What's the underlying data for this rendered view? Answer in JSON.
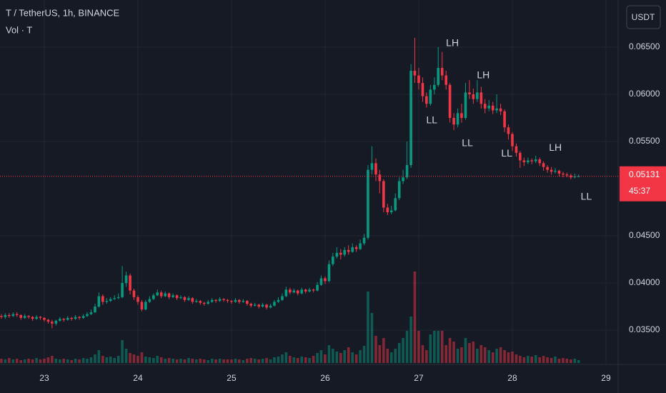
{
  "chart_data": {
    "type": "candlestick",
    "title": "T / TetherUS, 1h, BINANCE",
    "subtitle": "Vol · T",
    "y_axis_unit": "USDT",
    "last_price": 0.05131,
    "countdown": "45:37",
    "up_color": "#089981",
    "down_color": "#f23645",
    "grid": true,
    "xlim": [
      22.527,
      29.13
    ],
    "xticks": [
      23,
      24,
      25,
      26,
      27,
      28,
      29
    ],
    "ylim": [
      0.03137,
      0.07
    ],
    "yticks": [
      {
        "value": 0.065,
        "label": "0.06500"
      },
      {
        "value": 0.06,
        "label": "0.06000"
      },
      {
        "value": 0.055,
        "label": "0.05500"
      },
      {
        "value": 0.045,
        "label": "0.04500"
      },
      {
        "value": 0.04,
        "label": "0.04000"
      },
      {
        "value": 0.035,
        "label": "0.03500"
      }
    ],
    "x": [
      22.542,
      22.583,
      22.625,
      22.667,
      22.708,
      22.75,
      22.792,
      22.833,
      22.875,
      22.917,
      22.958,
      23,
      23.042,
      23.083,
      23.125,
      23.167,
      23.208,
      23.25,
      23.292,
      23.333,
      23.375,
      23.417,
      23.458,
      23.5,
      23.542,
      23.583,
      23.625,
      23.667,
      23.708,
      23.75,
      23.792,
      23.833,
      23.875,
      23.917,
      23.958,
      24,
      24.042,
      24.083,
      24.125,
      24.167,
      24.208,
      24.25,
      24.292,
      24.333,
      24.375,
      24.417,
      24.458,
      24.5,
      24.542,
      24.583,
      24.625,
      24.667,
      24.708,
      24.75,
      24.792,
      24.833,
      24.875,
      24.917,
      24.958,
      25,
      25.042,
      25.083,
      25.125,
      25.167,
      25.208,
      25.25,
      25.292,
      25.333,
      25.375,
      25.417,
      25.458,
      25.5,
      25.542,
      25.583,
      25.625,
      25.667,
      25.708,
      25.75,
      25.792,
      25.833,
      25.875,
      25.917,
      25.958,
      26,
      26.042,
      26.083,
      26.125,
      26.167,
      26.208,
      26.25,
      26.292,
      26.333,
      26.375,
      26.417,
      26.458,
      26.5,
      26.542,
      26.583,
      26.625,
      26.667,
      26.708,
      26.75,
      26.792,
      26.833,
      26.875,
      26.917,
      26.958,
      27,
      27.042,
      27.083,
      27.125,
      27.167,
      27.208,
      27.25,
      27.292,
      27.333,
      27.375,
      27.417,
      27.458,
      27.5,
      27.542,
      27.583,
      27.625,
      27.667,
      27.708,
      27.75,
      27.792,
      27.833,
      27.875,
      27.917,
      27.958,
      28,
      28.042,
      28.083,
      28.125,
      28.167,
      28.208,
      28.25,
      28.292,
      28.333,
      28.375,
      28.417,
      28.458,
      28.5,
      28.542,
      28.583,
      28.625,
      28.667,
      28.708
    ],
    "ohlc": [
      [
        0.0365,
        0.0367,
        0.0362,
        0.0364
      ],
      [
        0.0364,
        0.0368,
        0.0362,
        0.0366
      ],
      [
        0.0366,
        0.0368,
        0.0363,
        0.0365
      ],
      [
        0.0365,
        0.0369,
        0.0364,
        0.0367
      ],
      [
        0.0367,
        0.0369,
        0.0364,
        0.0366
      ],
      [
        0.0366,
        0.0367,
        0.0361,
        0.0363
      ],
      [
        0.0363,
        0.0367,
        0.0362,
        0.0365
      ],
      [
        0.0365,
        0.0366,
        0.0362,
        0.0364
      ],
      [
        0.0364,
        0.0365,
        0.036,
        0.0362
      ],
      [
        0.0362,
        0.0366,
        0.0361,
        0.0364
      ],
      [
        0.0364,
        0.0365,
        0.0361,
        0.0363
      ],
      [
        0.0363,
        0.0364,
        0.0359,
        0.0361
      ],
      [
        0.0361,
        0.0362,
        0.0357,
        0.0359
      ],
      [
        0.0359,
        0.0361,
        0.0352,
        0.0357
      ],
      [
        0.0357,
        0.0361,
        0.0355,
        0.036
      ],
      [
        0.036,
        0.0364,
        0.0359,
        0.0362
      ],
      [
        0.0362,
        0.0363,
        0.0359,
        0.0361
      ],
      [
        0.0361,
        0.0365,
        0.036,
        0.0363
      ],
      [
        0.0363,
        0.0364,
        0.036,
        0.0362
      ],
      [
        0.0362,
        0.0366,
        0.0361,
        0.0364
      ],
      [
        0.0364,
        0.0365,
        0.0361,
        0.0363
      ],
      [
        0.0363,
        0.0367,
        0.0362,
        0.0365
      ],
      [
        0.0365,
        0.0369,
        0.0364,
        0.0367
      ],
      [
        0.0367,
        0.0372,
        0.0366,
        0.0369
      ],
      [
        0.0369,
        0.0378,
        0.0368,
        0.0375
      ],
      [
        0.0375,
        0.039,
        0.0374,
        0.0386
      ],
      [
        0.0386,
        0.0388,
        0.0377,
        0.038
      ],
      [
        0.038,
        0.0384,
        0.0378,
        0.0381
      ],
      [
        0.0381,
        0.0385,
        0.038,
        0.0383
      ],
      [
        0.0383,
        0.0387,
        0.0382,
        0.0384
      ],
      [
        0.0384,
        0.0389,
        0.0383,
        0.0385
      ],
      [
        0.0385,
        0.0418,
        0.0384,
        0.04
      ],
      [
        0.04,
        0.0412,
        0.0396,
        0.0408
      ],
      [
        0.0408,
        0.041,
        0.0388,
        0.0392
      ],
      [
        0.0392,
        0.0394,
        0.0382,
        0.0385
      ],
      [
        0.0385,
        0.0387,
        0.0377,
        0.038
      ],
      [
        0.038,
        0.0382,
        0.037,
        0.0372
      ],
      [
        0.0372,
        0.0382,
        0.0371,
        0.038
      ],
      [
        0.038,
        0.0386,
        0.0379,
        0.0383
      ],
      [
        0.0383,
        0.0389,
        0.0382,
        0.0387
      ],
      [
        0.0387,
        0.0393,
        0.0386,
        0.039
      ],
      [
        0.039,
        0.0392,
        0.0384,
        0.0386
      ],
      [
        0.0386,
        0.0391,
        0.0385,
        0.0389
      ],
      [
        0.0389,
        0.039,
        0.0383,
        0.0385
      ],
      [
        0.0385,
        0.0389,
        0.0384,
        0.0387
      ],
      [
        0.0387,
        0.0388,
        0.0382,
        0.0384
      ],
      [
        0.0384,
        0.0387,
        0.0383,
        0.0385
      ],
      [
        0.0385,
        0.0386,
        0.038,
        0.0382
      ],
      [
        0.0382,
        0.0386,
        0.0381,
        0.0384
      ],
      [
        0.0384,
        0.0385,
        0.0378,
        0.038
      ],
      [
        0.038,
        0.0383,
        0.0379,
        0.0381
      ],
      [
        0.0381,
        0.0382,
        0.0377,
        0.0379
      ],
      [
        0.0379,
        0.038,
        0.0376,
        0.0378
      ],
      [
        0.0378,
        0.0382,
        0.0377,
        0.038
      ],
      [
        0.038,
        0.0384,
        0.0379,
        0.0382
      ],
      [
        0.0382,
        0.0383,
        0.0379,
        0.0381
      ],
      [
        0.0381,
        0.0385,
        0.038,
        0.0383
      ],
      [
        0.0383,
        0.0384,
        0.038,
        0.0382
      ],
      [
        0.0382,
        0.0383,
        0.0379,
        0.0381
      ],
      [
        0.0381,
        0.0382,
        0.0378,
        0.038
      ],
      [
        0.038,
        0.0384,
        0.0379,
        0.0382
      ],
      [
        0.0382,
        0.0383,
        0.0378,
        0.038
      ],
      [
        0.038,
        0.0383,
        0.0379,
        0.0381
      ],
      [
        0.0381,
        0.0382,
        0.0376,
        0.0378
      ],
      [
        0.0378,
        0.0379,
        0.0374,
        0.0376
      ],
      [
        0.0376,
        0.0379,
        0.0375,
        0.0377
      ],
      [
        0.0377,
        0.0378,
        0.0373,
        0.0375
      ],
      [
        0.0375,
        0.0379,
        0.0374,
        0.0377
      ],
      [
        0.0377,
        0.0378,
        0.0372,
        0.0374
      ],
      [
        0.0374,
        0.0378,
        0.0373,
        0.0376
      ],
      [
        0.0376,
        0.0382,
        0.0375,
        0.038
      ],
      [
        0.038,
        0.0385,
        0.0379,
        0.0382
      ],
      [
        0.0382,
        0.0389,
        0.0381,
        0.0386
      ],
      [
        0.0386,
        0.0396,
        0.0385,
        0.0393
      ],
      [
        0.0393,
        0.0395,
        0.0388,
        0.039
      ],
      [
        0.039,
        0.0394,
        0.0389,
        0.0392
      ],
      [
        0.0392,
        0.0393,
        0.0387,
        0.0389
      ],
      [
        0.0389,
        0.0395,
        0.0388,
        0.0393
      ],
      [
        0.0393,
        0.0394,
        0.0389,
        0.0391
      ],
      [
        0.0391,
        0.0395,
        0.039,
        0.0393
      ],
      [
        0.0393,
        0.0394,
        0.039,
        0.0392
      ],
      [
        0.0392,
        0.0401,
        0.0391,
        0.0398
      ],
      [
        0.0398,
        0.0408,
        0.0397,
        0.0405
      ],
      [
        0.0405,
        0.0407,
        0.0399,
        0.0402
      ],
      [
        0.0402,
        0.0424,
        0.0401,
        0.042
      ],
      [
        0.042,
        0.0432,
        0.0418,
        0.0428
      ],
      [
        0.0428,
        0.0438,
        0.0426,
        0.0432
      ],
      [
        0.0432,
        0.0436,
        0.0425,
        0.043
      ],
      [
        0.043,
        0.0438,
        0.0428,
        0.0435
      ],
      [
        0.0435,
        0.044,
        0.043,
        0.0433
      ],
      [
        0.0433,
        0.0442,
        0.0432,
        0.0438
      ],
      [
        0.0438,
        0.044,
        0.0433,
        0.0436
      ],
      [
        0.0436,
        0.0446,
        0.0435,
        0.0442
      ],
      [
        0.0442,
        0.0452,
        0.044,
        0.0448
      ],
      [
        0.0448,
        0.0525,
        0.0446,
        0.052
      ],
      [
        0.052,
        0.0545,
        0.0515,
        0.0527
      ],
      [
        0.0527,
        0.0532,
        0.0508,
        0.0515
      ],
      [
        0.0515,
        0.052,
        0.0495,
        0.0508
      ],
      [
        0.0508,
        0.051,
        0.0475,
        0.048
      ],
      [
        0.048,
        0.0484,
        0.0472,
        0.0475
      ],
      [
        0.0475,
        0.0482,
        0.0473,
        0.0477
      ],
      [
        0.0477,
        0.0495,
        0.0476,
        0.049
      ],
      [
        0.049,
        0.0512,
        0.0488,
        0.0508
      ],
      [
        0.0508,
        0.052,
        0.0505,
        0.0512
      ],
      [
        0.0512,
        0.055,
        0.051,
        0.0525
      ],
      [
        0.0525,
        0.0632,
        0.0522,
        0.0625
      ],
      [
        0.0625,
        0.066,
        0.0612,
        0.062
      ],
      [
        0.062,
        0.0628,
        0.0605,
        0.0612
      ],
      [
        0.0612,
        0.0618,
        0.0592,
        0.0598
      ],
      [
        0.0598,
        0.0602,
        0.0586,
        0.059
      ],
      [
        0.059,
        0.061,
        0.0588,
        0.0605
      ],
      [
        0.0605,
        0.0618,
        0.06,
        0.061
      ],
      [
        0.061,
        0.065,
        0.0608,
        0.0628
      ],
      [
        0.0628,
        0.0645,
        0.0615,
        0.062
      ],
      [
        0.062,
        0.0625,
        0.0605,
        0.061
      ],
      [
        0.061,
        0.0612,
        0.057,
        0.0575
      ],
      [
        0.0575,
        0.058,
        0.0562,
        0.0568
      ],
      [
        0.0568,
        0.0585,
        0.0565,
        0.058
      ],
      [
        0.058,
        0.059,
        0.057,
        0.0575
      ],
      [
        0.0575,
        0.0612,
        0.0573,
        0.0602
      ],
      [
        0.0602,
        0.0615,
        0.0595,
        0.06
      ],
      [
        0.06,
        0.0606,
        0.059,
        0.0595
      ],
      [
        0.0595,
        0.0615,
        0.0592,
        0.0602
      ],
      [
        0.0602,
        0.0608,
        0.0585,
        0.059
      ],
      [
        0.059,
        0.0595,
        0.058,
        0.0585
      ],
      [
        0.0585,
        0.0594,
        0.0582,
        0.0588
      ],
      [
        0.0588,
        0.0592,
        0.0579,
        0.0583
      ],
      [
        0.0583,
        0.06,
        0.058,
        0.0585
      ],
      [
        0.0585,
        0.059,
        0.0578,
        0.0582
      ],
      [
        0.0582,
        0.0584,
        0.056,
        0.0565
      ],
      [
        0.0565,
        0.0568,
        0.0552,
        0.0558
      ],
      [
        0.0558,
        0.056,
        0.054,
        0.0545
      ],
      [
        0.0545,
        0.0548,
        0.0534,
        0.0538
      ],
      [
        0.0538,
        0.054,
        0.0522,
        0.053
      ],
      [
        0.053,
        0.0533,
        0.0524,
        0.0528
      ],
      [
        0.0528,
        0.0533,
        0.0526,
        0.053
      ],
      [
        0.053,
        0.0532,
        0.0526,
        0.0529
      ],
      [
        0.0529,
        0.0535,
        0.0527,
        0.0531
      ],
      [
        0.0531,
        0.0533,
        0.0524,
        0.0527
      ],
      [
        0.0527,
        0.0529,
        0.0519,
        0.0523
      ],
      [
        0.0523,
        0.0525,
        0.0517,
        0.052
      ],
      [
        0.052,
        0.0523,
        0.0515,
        0.0518
      ],
      [
        0.0518,
        0.0522,
        0.0516,
        0.0519
      ],
      [
        0.0519,
        0.052,
        0.0513,
        0.0516
      ],
      [
        0.0516,
        0.0518,
        0.0512,
        0.0515
      ],
      [
        0.0515,
        0.0517,
        0.0512,
        0.0514
      ],
      [
        0.0514,
        0.0516,
        0.051,
        0.0512
      ],
      [
        0.0512,
        0.0516,
        0.0511,
        0.0513
      ],
      [
        0.0513,
        0.0515,
        0.0512,
        0.05131
      ]
    ],
    "volume": [
      6,
      5,
      7,
      5,
      6,
      4,
      5,
      6,
      5,
      7,
      5,
      6,
      8,
      10,
      6,
      5,
      6,
      5,
      4,
      6,
      5,
      7,
      6,
      8,
      12,
      18,
      10,
      8,
      9,
      7,
      10,
      32,
      20,
      14,
      12,
      10,
      15,
      9,
      8,
      7,
      10,
      8,
      6,
      7,
      6,
      5,
      6,
      5,
      7,
      6,
      5,
      6,
      5,
      4,
      6,
      5,
      6,
      5,
      5,
      5,
      6,
      5,
      4,
      6,
      7,
      6,
      5,
      6,
      7,
      5,
      8,
      9,
      12,
      15,
      10,
      8,
      7,
      9,
      8,
      7,
      10,
      14,
      18,
      12,
      25,
      20,
      16,
      14,
      18,
      22,
      15,
      12,
      18,
      24,
      100,
      70,
      38,
      25,
      35,
      20,
      15,
      20,
      28,
      35,
      45,
      65,
      128,
      45,
      25,
      18,
      40,
      45,
      45,
      45,
      25,
      35,
      30,
      20,
      22,
      35,
      28,
      30,
      20,
      25,
      22,
      18,
      15,
      20,
      22,
      18,
      15,
      16,
      12,
      10,
      8,
      10,
      9,
      11,
      8,
      10,
      8,
      7,
      9,
      6,
      7,
      6,
      5,
      6,
      4
    ],
    "annotations": [
      {
        "text": "LH",
        "x": 27.36,
        "y": 0.0654
      },
      {
        "text": "LL",
        "x": 27.14,
        "y": 0.0572
      },
      {
        "text": "LH",
        "x": 27.69,
        "y": 0.062
      },
      {
        "text": "LL",
        "x": 27.52,
        "y": 0.0548
      },
      {
        "text": "LL",
        "x": 27.94,
        "y": 0.0537
      },
      {
        "text": "LH",
        "x": 28.46,
        "y": 0.0543
      },
      {
        "text": "LL",
        "x": 28.79,
        "y": 0.0491
      }
    ]
  }
}
